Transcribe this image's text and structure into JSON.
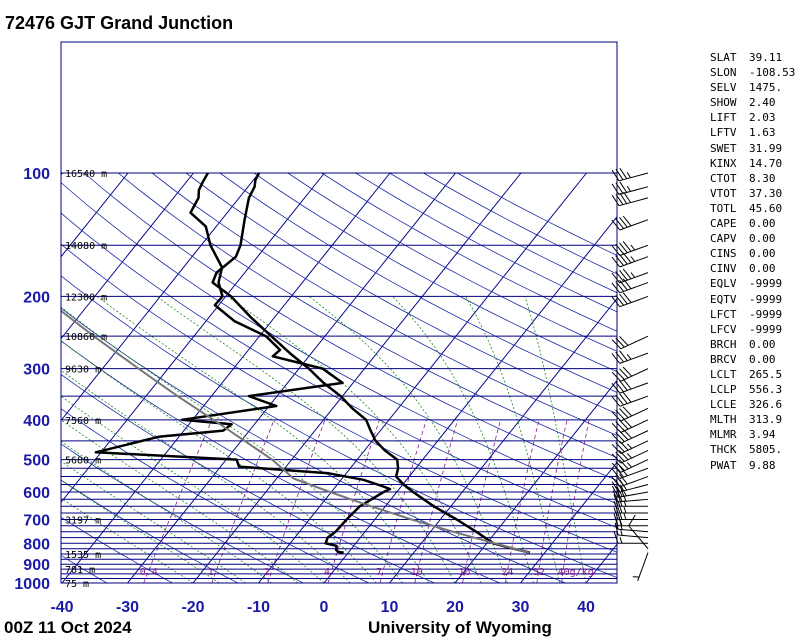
{
  "header": {
    "title": "72476 GJT Grand Junction"
  },
  "footer": {
    "left": "00Z 11 Oct 2024",
    "right": "University of Wyoming"
  },
  "indices": [
    {
      "key": "SLAT",
      "value": "39.11"
    },
    {
      "key": "SLON",
      "value": "-108.53"
    },
    {
      "key": "SELV",
      "value": "1475."
    },
    {
      "key": "SHOW",
      "value": "2.40"
    },
    {
      "key": "LIFT",
      "value": "2.03"
    },
    {
      "key": "LFTV",
      "value": "1.63"
    },
    {
      "key": "SWET",
      "value": "31.99"
    },
    {
      "key": "KINX",
      "value": "14.70"
    },
    {
      "key": "CTOT",
      "value": "8.30"
    },
    {
      "key": "VTOT",
      "value": "37.30"
    },
    {
      "key": "TOTL",
      "value": "45.60"
    },
    {
      "key": "CAPE",
      "value": "0.00"
    },
    {
      "key": "CAPV",
      "value": "0.00"
    },
    {
      "key": "CINS",
      "value": "0.00"
    },
    {
      "key": "CINV",
      "value": "0.00"
    },
    {
      "key": "EQLV",
      "value": "-9999"
    },
    {
      "key": "EQTV",
      "value": "-9999"
    },
    {
      "key": "LFCT",
      "value": "-9999"
    },
    {
      "key": "LFCV",
      "value": "-9999"
    },
    {
      "key": "BRCH",
      "value": "0.00"
    },
    {
      "key": "BRCV",
      "value": "0.00"
    },
    {
      "key": "LCLT",
      "value": "265.5"
    },
    {
      "key": "LCLP",
      "value": "556.3"
    },
    {
      "key": "LCLE",
      "value": "326.6"
    },
    {
      "key": "MLTH",
      "value": "313.9"
    },
    {
      "key": "MLMR",
      "value": "3.94"
    },
    {
      "key": "THCK",
      "value": "5805."
    },
    {
      "key": "PWAT",
      "value": "9.88"
    }
  ],
  "chart_data": {
    "type": "line",
    "chart_kind": "skew-T log-P sounding",
    "xlabel": "",
    "ylabel": "",
    "x_ticks": [
      -40,
      -30,
      -20,
      -10,
      0,
      10,
      20,
      30,
      40
    ],
    "pressure_ticks": [
      100,
      200,
      300,
      400,
      500,
      600,
      700,
      800,
      900,
      1000
    ],
    "pressure_range": [
      1000,
      100
    ],
    "isobar_lines_hPa": [
      1000,
      975,
      950,
      925,
      900,
      875,
      850,
      825,
      800,
      775,
      750,
      725,
      700,
      675,
      650,
      625,
      600,
      575,
      550,
      525,
      500,
      450,
      400,
      350,
      300,
      250,
      200,
      150,
      100
    ],
    "height_labels": [
      {
        "p": 100,
        "text": "16540 m"
      },
      {
        "p": 150,
        "text": "14080 m"
      },
      {
        "p": 200,
        "text": "12300 m"
      },
      {
        "p": 250,
        "text": "10860 m"
      },
      {
        "p": 300,
        "text": "9630 m"
      },
      {
        "p": 400,
        "text": "7560 m"
      },
      {
        "p": 500,
        "text": "5680 m"
      },
      {
        "p": 700,
        "text": "3197 m"
      },
      {
        "p": 850,
        "text": "1535 m"
      },
      {
        "p": 925,
        "text": "781 m"
      },
      {
        "p": 1000,
        "text": "75 m"
      }
    ],
    "mixing_ratio_labels": [
      "0.4",
      "1",
      "2",
      "4",
      "7",
      "10",
      "16",
      "24",
      "32",
      "40g/kg"
    ],
    "mixing_ratio_values": [
      0.4,
      1,
      2,
      4,
      7,
      10,
      16,
      24,
      32,
      40
    ],
    "series": [
      {
        "key": "temperature",
        "color": "#000000",
        "points": [
          [
            843,
            27.7
          ],
          [
            820,
            24.0
          ],
          [
            800,
            21.0
          ],
          [
            750,
            17.0
          ],
          [
            700,
            12.5
          ],
          [
            650,
            7.4
          ],
          [
            600,
            2.5
          ],
          [
            575,
            0.1
          ],
          [
            550,
            -2.0
          ],
          [
            525,
            -2.7
          ],
          [
            500,
            -3.9
          ],
          [
            475,
            -6.9
          ],
          [
            450,
            -9.5
          ],
          [
            425,
            -11.5
          ],
          [
            400,
            -13.5
          ],
          [
            375,
            -17.0
          ],
          [
            350,
            -20.3
          ],
          [
            325,
            -24.5
          ],
          [
            300,
            -28.5
          ],
          [
            275,
            -33.3
          ],
          [
            250,
            -38.2
          ],
          [
            225,
            -43.6
          ],
          [
            200,
            -49.2
          ],
          [
            185,
            -53.7
          ],
          [
            175,
            -54.3
          ],
          [
            160,
            -53.3
          ],
          [
            150,
            -54.0
          ],
          [
            130,
            -56.5
          ],
          [
            115,
            -58.5
          ],
          [
            108,
            -59.0
          ],
          [
            104,
            -59.7
          ],
          [
            100,
            -60.0
          ]
        ]
      },
      {
        "key": "dewpoint",
        "color": "#000000",
        "points": [
          [
            843,
            -0.7
          ],
          [
            840,
            -1.6
          ],
          [
            830,
            -2.2
          ],
          [
            812,
            -2.6
          ],
          [
            800,
            -4.6
          ],
          [
            775,
            -5.0
          ],
          [
            750,
            -4.5
          ],
          [
            700,
            -4.3
          ],
          [
            650,
            -3.9
          ],
          [
            600,
            -2.0
          ],
          [
            590,
            -1.4
          ],
          [
            580,
            -3.0
          ],
          [
            560,
            -6.6
          ],
          [
            540,
            -12.7
          ],
          [
            520,
            -27.2
          ],
          [
            500,
            -28.4
          ],
          [
            480,
            -50.8
          ],
          [
            440,
            -43.1
          ],
          [
            425,
            -34.0
          ],
          [
            410,
            -33.5
          ],
          [
            400,
            -41.6
          ],
          [
            370,
            -28.9
          ],
          [
            350,
            -34.3
          ],
          [
            325,
            -21.6
          ],
          [
            300,
            -26.4
          ],
          [
            280,
            -35.5
          ],
          [
            270,
            -35.2
          ],
          [
            250,
            -39.0
          ],
          [
            230,
            -45.6
          ],
          [
            210,
            -50.6
          ],
          [
            200,
            -50.5
          ],
          [
            185,
            -52.8
          ],
          [
            170,
            -54.1
          ],
          [
            150,
            -58.6
          ],
          [
            135,
            -61.6
          ],
          [
            125,
            -65.6
          ],
          [
            115,
            -66.2
          ],
          [
            110,
            -67.1
          ],
          [
            105,
            -67.5
          ],
          [
            100,
            -67.8
          ]
        ]
      },
      {
        "key": "parcel",
        "color": "#777777",
        "points": [
          [
            843,
            27.6
          ],
          [
            800,
            21.2
          ],
          [
            750,
            13.5
          ],
          [
            700,
            5.6
          ],
          [
            650,
            -2.2
          ],
          [
            600,
            -10.2
          ],
          [
            556,
            -17.4
          ],
          [
            500,
            -23.0
          ],
          [
            450,
            -29.5
          ],
          [
            400,
            -36.8
          ],
          [
            350,
            -45.2
          ],
          [
            300,
            -54.5
          ],
          [
            250,
            -65.3
          ],
          [
            200,
            -78.0
          ],
          [
            150,
            -94.0
          ],
          [
            100,
            -118.0
          ]
        ]
      }
    ],
    "wind_barbs": [
      {
        "p": 843,
        "dir": 200,
        "spd": 5
      },
      {
        "p": 825,
        "dir": 320,
        "spd": 10
      },
      {
        "p": 800,
        "dir": 270,
        "spd": 15
      },
      {
        "p": 775,
        "dir": 275,
        "spd": 15
      },
      {
        "p": 750,
        "dir": 275,
        "spd": 20
      },
      {
        "p": 725,
        "dir": 270,
        "spd": 20
      },
      {
        "p": 700,
        "dir": 270,
        "spd": 25
      },
      {
        "p": 675,
        "dir": 270,
        "spd": 25
      },
      {
        "p": 650,
        "dir": 270,
        "spd": 25
      },
      {
        "p": 625,
        "dir": 265,
        "spd": 30
      },
      {
        "p": 600,
        "dir": 260,
        "spd": 30
      },
      {
        "p": 575,
        "dir": 255,
        "spd": 30
      },
      {
        "p": 550,
        "dir": 250,
        "spd": 30
      },
      {
        "p": 525,
        "dir": 250,
        "spd": 30
      },
      {
        "p": 500,
        "dir": 245,
        "spd": 35
      },
      {
        "p": 475,
        "dir": 245,
        "spd": 35
      },
      {
        "p": 450,
        "dir": 245,
        "spd": 35
      },
      {
        "p": 425,
        "dir": 245,
        "spd": 40
      },
      {
        "p": 400,
        "dir": 245,
        "spd": 40
      },
      {
        "p": 375,
        "dir": 245,
        "spd": 40
      },
      {
        "p": 350,
        "dir": 250,
        "spd": 40
      },
      {
        "p": 325,
        "dir": 250,
        "spd": 40
      },
      {
        "p": 300,
        "dir": 245,
        "spd": 40
      },
      {
        "p": 275,
        "dir": 250,
        "spd": 35
      },
      {
        "p": 250,
        "dir": 245,
        "spd": 30
      },
      {
        "p": 200,
        "dir": 250,
        "spd": 40
      },
      {
        "p": 185,
        "dir": 250,
        "spd": 40
      },
      {
        "p": 175,
        "dir": 250,
        "spd": 45
      },
      {
        "p": 160,
        "dir": 250,
        "spd": 45
      },
      {
        "p": 150,
        "dir": 250,
        "spd": 45
      },
      {
        "p": 130,
        "dir": 250,
        "spd": 40
      },
      {
        "p": 115,
        "dir": 255,
        "spd": 40
      },
      {
        "p": 108,
        "dir": 255,
        "spd": 35
      },
      {
        "p": 100,
        "dir": 255,
        "spd": 35
      }
    ]
  },
  "colors": {
    "isobar": "#000080",
    "isotherm": "#00008b",
    "dry_adiabat": "#1a2ba8",
    "moist_adiabat": "#1a8a1a",
    "mixing_ratio": "#8a1a8a",
    "axis_label": "#1a1aa6"
  }
}
